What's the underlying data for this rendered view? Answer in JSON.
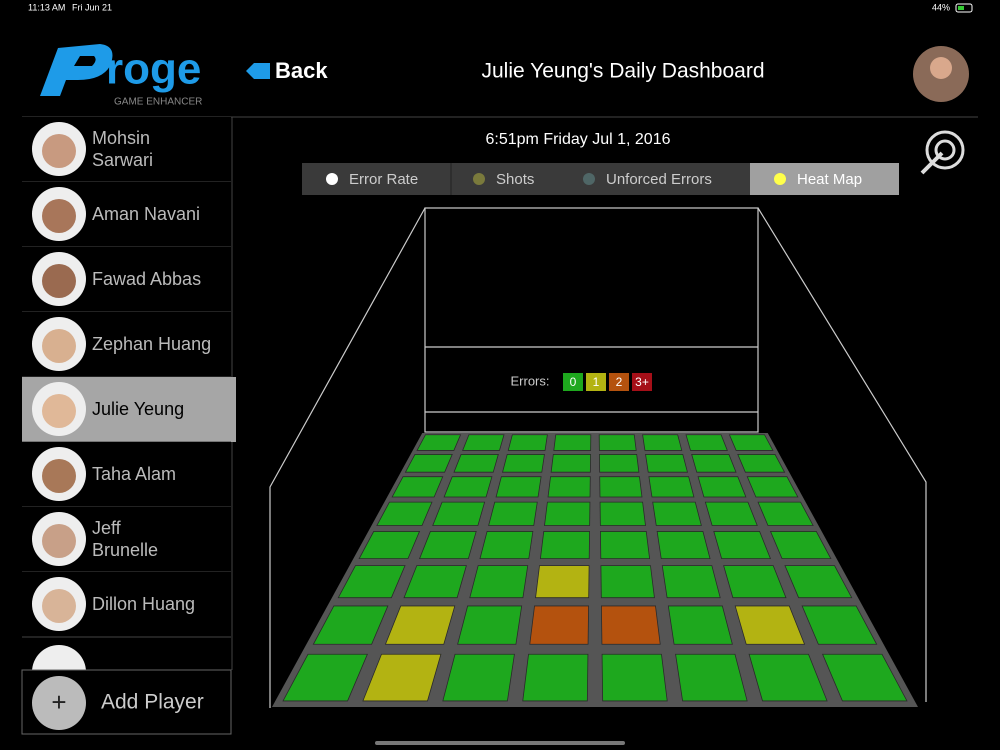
{
  "status_bar": {
    "time": "11:13 AM",
    "date": "Fri Jun 21",
    "battery": "44%"
  },
  "header": {
    "logo": "roge",
    "logo_subtitle": "GAME ENHANCER",
    "back": "Back",
    "title": "Julie Yeung's Daily Dashboard"
  },
  "players": [
    "Mohsin Sarwari",
    "Aman Navani",
    "Fawad Abbas",
    "Zephan Huang",
    "Julie Yeung",
    "Taha Alam",
    "Jeff Brunelle",
    "Dillon Huang"
  ],
  "selected_player": 4,
  "add_player": {
    "icon": "+",
    "label": "Add Player"
  },
  "timestamp": "6:51pm Friday Jul 1, 2016",
  "tabs": [
    {
      "label": "Error  Rate",
      "dot_color": "#ffffff"
    },
    {
      "label": "Shots",
      "dot_color": "#7a7a3c"
    },
    {
      "label": "Unforced Errors",
      "dot_color": "#4f6666"
    },
    {
      "label": "Heat Map",
      "dot_color": "#ffff4a"
    }
  ],
  "selected_tab": 3,
  "heatmap": {
    "legend_title": "Errors:",
    "legend": [
      {
        "label": "0",
        "color": "#1ea81e"
      },
      {
        "label": "1",
        "color": "#b3b312"
      },
      {
        "label": "2",
        "color": "#b4520e"
      },
      {
        "label": "3+",
        "color": "#a50f18"
      }
    ],
    "rows": [
      [
        0,
        0,
        0,
        0,
        0,
        0,
        0,
        0
      ],
      [
        0,
        0,
        0,
        0,
        0,
        0,
        0,
        0
      ],
      [
        0,
        0,
        0,
        0,
        0,
        0,
        0,
        0
      ],
      [
        0,
        0,
        0,
        0,
        0,
        0,
        0,
        0
      ],
      [
        0,
        0,
        0,
        0,
        0,
        0,
        0,
        0
      ],
      [
        0,
        0,
        0,
        1,
        0,
        0,
        0,
        0
      ],
      [
        0,
        1,
        0,
        2,
        2,
        0,
        1,
        0
      ],
      [
        0,
        1,
        0,
        0,
        0,
        0,
        0,
        0
      ]
    ]
  }
}
